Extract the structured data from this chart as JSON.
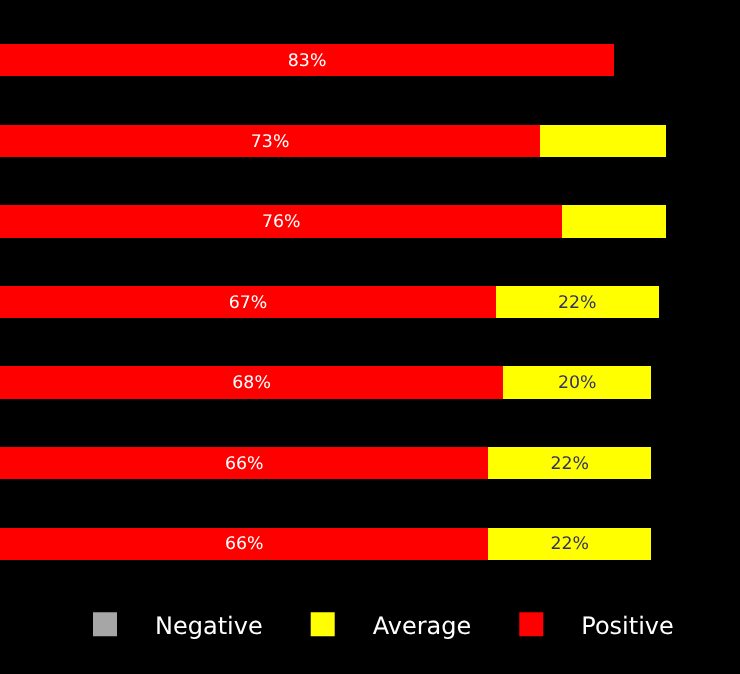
{
  "chart_data": {
    "type": "bar",
    "orientation": "horizontal",
    "stacked": true,
    "categories": [
      null,
      null,
      null,
      null,
      null,
      null,
      null
    ],
    "series": [
      {
        "name": "Positive",
        "color": "#ff0000",
        "values": [
          83,
          73,
          76,
          67,
          68,
          66,
          66
        ],
        "value_labels": [
          "83%",
          "73%",
          "76%",
          "67%",
          "68%",
          "66%",
          "66%"
        ]
      },
      {
        "name": "Average",
        "color": "#ffff00",
        "values": [
          null,
          17,
          14,
          22,
          20,
          22,
          22
        ],
        "value_labels": [
          null,
          null,
          null,
          "22%",
          "20%",
          "22%",
          "22%"
        ]
      },
      {
        "name": "Negative",
        "color": "#a6a6a6",
        "values": [
          null,
          null,
          null,
          null,
          null,
          null,
          null
        ]
      }
    ],
    "xlim": [
      0,
      100
    ],
    "tick_labels": false,
    "grid": false,
    "legend": "bottom"
  }
}
